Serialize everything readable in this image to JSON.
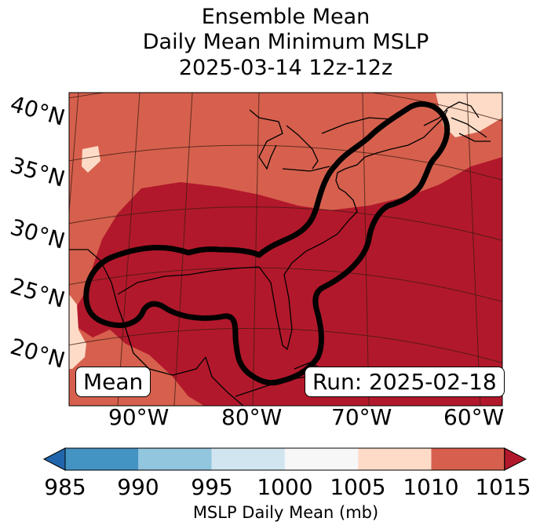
{
  "title": {
    "line1": "Ensemble Mean",
    "line2": "Daily Mean Minimum MSLP",
    "line3": "2025-03-14 12z-12z"
  },
  "map": {
    "region": "Gulf of Mexico / US East Coast / Western Atlantic",
    "lat_labels": [
      "40°N",
      "35°N",
      "30°N",
      "25°N",
      "20°N"
    ],
    "lon_labels": [
      "90°W",
      "80°W",
      "70°W",
      "60°W"
    ],
    "mean_label": "Mean",
    "run_label": "Run: 2025-02-18",
    "contour_description": "Black contour outlining low-pressure corridor from the Gulf of Mexico along the US East Coast"
  },
  "colorbar": {
    "ticks": [
      "985",
      "990",
      "995",
      "1000",
      "1005",
      "1010",
      "1015"
    ],
    "label": "MSLP Daily Mean (mb)",
    "colors": [
      "#4393c3",
      "#92c5de",
      "#d1e5f0",
      "#f7f7f7",
      "#fddbc7",
      "#d6604d",
      "#b2182b"
    ],
    "extend_low_color": "#2166ac",
    "extend_high_color": "#b2182b"
  }
}
